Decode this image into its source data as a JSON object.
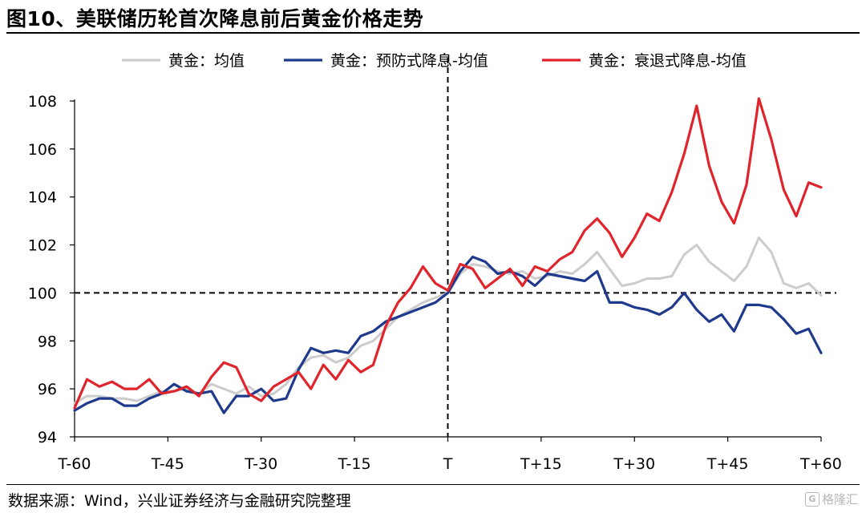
{
  "title": "图10、美联储历轮首次降息前后黄金价格走势",
  "source": "数据来源：Wind，兴业证券经济与金融研究院整理",
  "watermark": "格隆汇",
  "colors": {
    "gray": "#cccccc",
    "blue": "#1f3a8c",
    "red": "#e0242c"
  },
  "chart_data": {
    "type": "line",
    "y_ticks": [
      94,
      96,
      98,
      100,
      102,
      104,
      106,
      108
    ],
    "ylim": [
      94,
      108
    ],
    "x_range": [
      -60,
      60
    ],
    "x_tick_values": [
      -60,
      -45,
      -30,
      -15,
      0,
      15,
      30,
      45,
      60
    ],
    "x_tick_labels": [
      "T-60",
      "T-45",
      "T-30",
      "T-15",
      "T",
      "T+15",
      "T+30",
      "T+45",
      "T+60"
    ],
    "reference_lines": {
      "x": 0,
      "y": 100
    },
    "legend": [
      "黄金：均值",
      "黄金：预防式降息-均值",
      "黄金：衰退式降息-均值"
    ],
    "series": [
      {
        "name": "黄金：均值",
        "color_key": "gray",
        "points": [
          [
            -60,
            95.4
          ],
          [
            -58,
            95.7
          ],
          [
            -56,
            95.7
          ],
          [
            -54,
            95.6
          ],
          [
            -52,
            95.6
          ],
          [
            -50,
            95.5
          ],
          [
            -48,
            95.7
          ],
          [
            -46,
            95.9
          ],
          [
            -44,
            95.9
          ],
          [
            -42,
            96.0
          ],
          [
            -40,
            95.8
          ],
          [
            -38,
            96.2
          ],
          [
            -36,
            96.0
          ],
          [
            -34,
            95.8
          ],
          [
            -32,
            96.1
          ],
          [
            -30,
            95.7
          ],
          [
            -28,
            95.8
          ],
          [
            -26,
            96.2
          ],
          [
            -24,
            96.9
          ],
          [
            -22,
            97.3
          ],
          [
            -20,
            97.4
          ],
          [
            -18,
            97.1
          ],
          [
            -16,
            97.3
          ],
          [
            -14,
            97.8
          ],
          [
            -12,
            98.0
          ],
          [
            -10,
            98.5
          ],
          [
            -8,
            99.0
          ],
          [
            -6,
            99.3
          ],
          [
            -4,
            99.6
          ],
          [
            -2,
            99.8
          ],
          [
            0,
            100.0
          ],
          [
            2,
            100.8
          ],
          [
            4,
            101.2
          ],
          [
            6,
            101.1
          ],
          [
            8,
            100.9
          ],
          [
            10,
            100.8
          ],
          [
            12,
            100.9
          ],
          [
            14,
            100.6
          ],
          [
            16,
            100.7
          ],
          [
            18,
            100.9
          ],
          [
            20,
            100.8
          ],
          [
            22,
            101.2
          ],
          [
            24,
            101.7
          ],
          [
            26,
            101.0
          ],
          [
            28,
            100.3
          ],
          [
            30,
            100.4
          ],
          [
            32,
            100.6
          ],
          [
            34,
            100.6
          ],
          [
            36,
            100.7
          ],
          [
            38,
            101.6
          ],
          [
            40,
            102.0
          ],
          [
            42,
            101.3
          ],
          [
            44,
            100.9
          ],
          [
            46,
            100.5
          ],
          [
            48,
            101.1
          ],
          [
            50,
            102.3
          ],
          [
            52,
            101.7
          ],
          [
            54,
            100.4
          ],
          [
            56,
            100.2
          ],
          [
            58,
            100.4
          ],
          [
            60,
            99.9
          ]
        ]
      },
      {
        "name": "黄金：预防式降息-均值",
        "color_key": "blue",
        "points": [
          [
            -60,
            95.1
          ],
          [
            -58,
            95.4
          ],
          [
            -56,
            95.6
          ],
          [
            -54,
            95.6
          ],
          [
            -52,
            95.3
          ],
          [
            -50,
            95.3
          ],
          [
            -48,
            95.6
          ],
          [
            -46,
            95.8
          ],
          [
            -44,
            96.2
          ],
          [
            -42,
            95.9
          ],
          [
            -40,
            95.8
          ],
          [
            -38,
            95.9
          ],
          [
            -36,
            95.0
          ],
          [
            -34,
            95.7
          ],
          [
            -32,
            95.7
          ],
          [
            -30,
            96.0
          ],
          [
            -28,
            95.5
          ],
          [
            -26,
            95.6
          ],
          [
            -24,
            96.8
          ],
          [
            -22,
            97.7
          ],
          [
            -20,
            97.5
          ],
          [
            -18,
            97.6
          ],
          [
            -16,
            97.5
          ],
          [
            -14,
            98.2
          ],
          [
            -12,
            98.4
          ],
          [
            -10,
            98.8
          ],
          [
            -8,
            99.0
          ],
          [
            -6,
            99.2
          ],
          [
            -4,
            99.4
          ],
          [
            -2,
            99.6
          ],
          [
            0,
            100.0
          ],
          [
            2,
            100.9
          ],
          [
            4,
            101.5
          ],
          [
            6,
            101.3
          ],
          [
            8,
            100.8
          ],
          [
            10,
            100.9
          ],
          [
            12,
            100.7
          ],
          [
            14,
            100.3
          ],
          [
            16,
            100.8
          ],
          [
            18,
            100.7
          ],
          [
            20,
            100.6
          ],
          [
            22,
            100.5
          ],
          [
            24,
            100.9
          ],
          [
            26,
            99.6
          ],
          [
            28,
            99.6
          ],
          [
            30,
            99.4
          ],
          [
            32,
            99.3
          ],
          [
            34,
            99.1
          ],
          [
            36,
            99.4
          ],
          [
            38,
            100.0
          ],
          [
            40,
            99.3
          ],
          [
            42,
            98.8
          ],
          [
            44,
            99.1
          ],
          [
            46,
            98.4
          ],
          [
            48,
            99.5
          ],
          [
            50,
            99.5
          ],
          [
            52,
            99.4
          ],
          [
            54,
            98.9
          ],
          [
            56,
            98.3
          ],
          [
            58,
            98.5
          ],
          [
            60,
            97.5
          ]
        ]
      },
      {
        "name": "黄金：衰退式降息-均值",
        "color_key": "red",
        "points": [
          [
            -60,
            95.2
          ],
          [
            -58,
            96.4
          ],
          [
            -56,
            96.1
          ],
          [
            -54,
            96.3
          ],
          [
            -52,
            96.0
          ],
          [
            -50,
            96.0
          ],
          [
            -48,
            96.4
          ],
          [
            -46,
            95.8
          ],
          [
            -44,
            95.9
          ],
          [
            -42,
            96.1
          ],
          [
            -40,
            95.7
          ],
          [
            -38,
            96.5
          ],
          [
            -36,
            97.1
          ],
          [
            -34,
            96.9
          ],
          [
            -32,
            95.8
          ],
          [
            -30,
            95.5
          ],
          [
            -28,
            96.1
          ],
          [
            -26,
            96.4
          ],
          [
            -24,
            96.7
          ],
          [
            -22,
            96.0
          ],
          [
            -20,
            97.0
          ],
          [
            -18,
            96.4
          ],
          [
            -16,
            97.2
          ],
          [
            -14,
            96.7
          ],
          [
            -12,
            97.0
          ],
          [
            -10,
            98.6
          ],
          [
            -8,
            99.6
          ],
          [
            -6,
            100.2
          ],
          [
            -4,
            101.1
          ],
          [
            -2,
            100.4
          ],
          [
            0,
            100.1
          ],
          [
            2,
            101.2
          ],
          [
            4,
            101.0
          ],
          [
            6,
            100.2
          ],
          [
            8,
            100.6
          ],
          [
            10,
            101.0
          ],
          [
            12,
            100.3
          ],
          [
            14,
            101.1
          ],
          [
            16,
            100.9
          ],
          [
            18,
            101.4
          ],
          [
            20,
            101.7
          ],
          [
            22,
            102.6
          ],
          [
            24,
            103.1
          ],
          [
            26,
            102.5
          ],
          [
            28,
            101.5
          ],
          [
            30,
            102.3
          ],
          [
            32,
            103.3
          ],
          [
            34,
            103.0
          ],
          [
            36,
            104.2
          ],
          [
            38,
            105.8
          ],
          [
            40,
            107.8
          ],
          [
            42,
            105.3
          ],
          [
            44,
            103.8
          ],
          [
            46,
            102.9
          ],
          [
            48,
            104.5
          ],
          [
            50,
            108.1
          ],
          [
            52,
            106.4
          ],
          [
            54,
            104.3
          ],
          [
            56,
            103.2
          ],
          [
            58,
            104.6
          ],
          [
            60,
            104.4
          ]
        ]
      }
    ]
  }
}
